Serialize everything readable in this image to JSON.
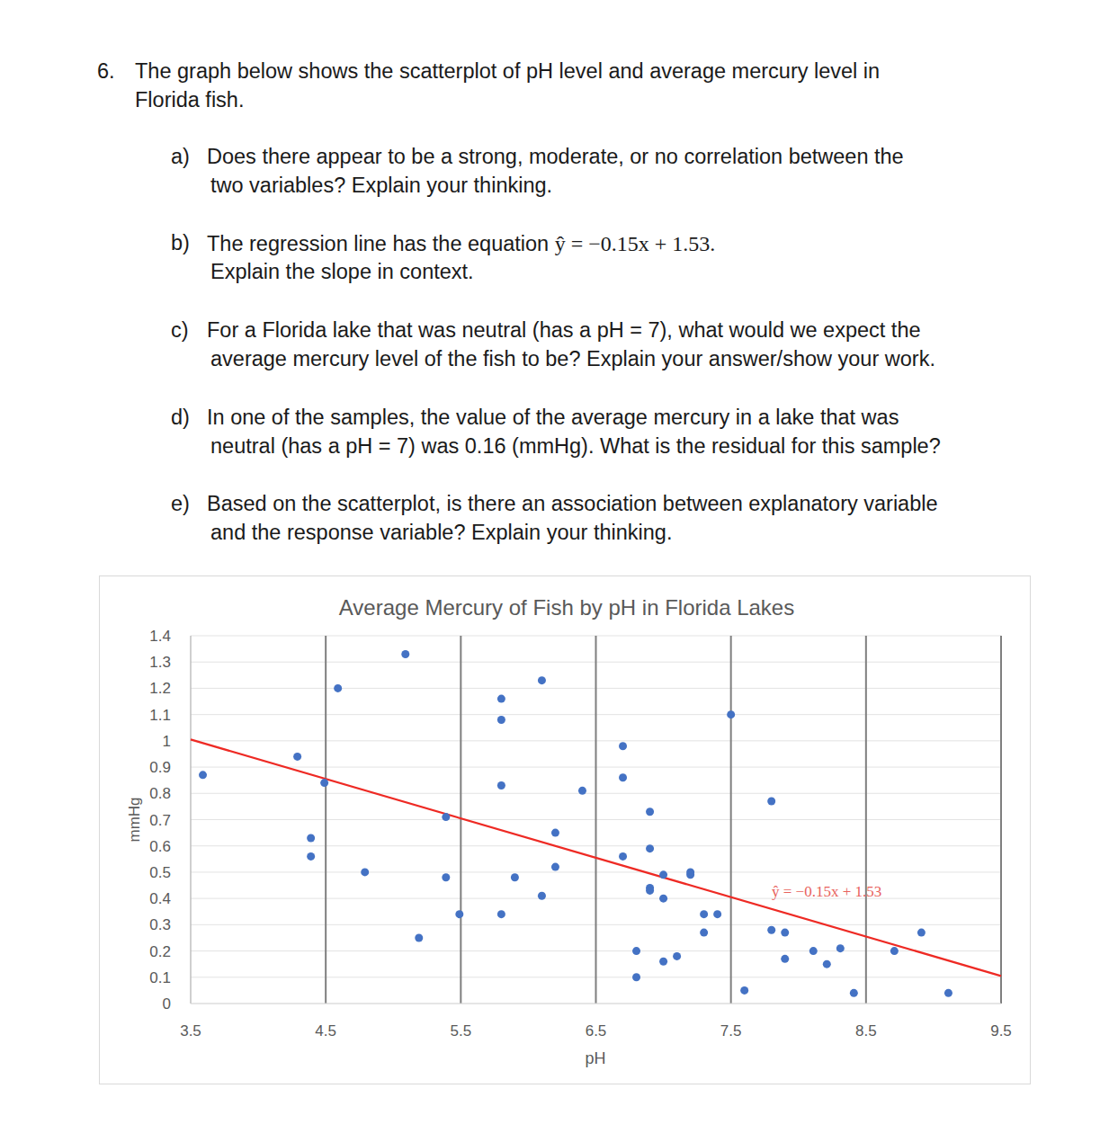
{
  "document": {
    "question": {
      "number": "6.",
      "lines": [
        "The graph below shows the scatterplot of pH level and average mercury level in",
        "Florida fish."
      ],
      "parts": [
        {
          "label": "a)",
          "lines": [
            "Does there appear to be a strong, moderate, or no correlation between the",
            "two variables? Explain your thinking."
          ]
        },
        {
          "label": "b)",
          "lines": [
            "The regression line has the equation ",
            "Explain the slope in context."
          ],
          "equation": "ŷ = −0.15x + 1.53."
        },
        {
          "label": "c)",
          "lines": [
            "For a Florida lake that was neutral (has a pH = 7), what would we expect the",
            "average mercury level of the fish to be? Explain your answer/show your work."
          ]
        },
        {
          "label": "d)",
          "lines": [
            "In one of the samples, the value of the average mercury in a lake that was",
            "neutral (has a pH = 7) was 0.16 (mmHg). What is the residual for this sample?"
          ]
        },
        {
          "label": "e)",
          "lines": [
            "Based on the scatterplot, is there an association between explanatory variable",
            "and the response variable? Explain your thinking."
          ]
        }
      ]
    }
  },
  "chart_data": {
    "type": "scatter",
    "title": "Average Mercury of Fish by pH in Florida Lakes",
    "x_label": "pH",
    "y_label": "mmHg",
    "xlim": [
      3.5,
      9.5
    ],
    "xticks": [
      3.5,
      4.5,
      5.5,
      6.5,
      7.5,
      8.5,
      9.5
    ],
    "ylim": [
      0,
      1.4
    ],
    "yticks": [
      0,
      0.1,
      0.2,
      0.3,
      0.4,
      0.5,
      0.6,
      0.7,
      0.8,
      0.9,
      1,
      1.1,
      1.2,
      1.3,
      1.4
    ],
    "grid": true,
    "color": "#4472c4",
    "marker": "circle",
    "x": [
      3.59,
      4.29,
      4.39,
      4.39,
      4.49,
      4.59,
      4.79,
      5.09,
      5.19,
      5.39,
      5.39,
      5.49,
      5.8,
      5.8,
      5.8,
      5.8,
      5.9,
      6.1,
      6.1,
      6.2,
      6.2,
      6.4,
      6.7,
      6.7,
      6.7,
      6.8,
      6.8,
      6.9,
      6.9,
      6.9,
      6.9,
      7.0,
      7.0,
      7.0,
      7.1,
      7.2,
      7.2,
      7.3,
      7.3,
      7.4,
      7.5,
      7.6,
      7.8,
      7.8,
      7.9,
      7.9,
      8.11,
      8.21,
      8.31,
      8.41,
      8.71,
      8.91,
      9.11
    ],
    "values": [
      0.87,
      0.94,
      0.63,
      0.56,
      0.84,
      1.2,
      0.5,
      1.33,
      0.25,
      0.71,
      0.48,
      0.34,
      1.16,
      1.08,
      0.83,
      0.34,
      0.48,
      1.23,
      0.41,
      0.65,
      0.52,
      0.81,
      0.98,
      0.86,
      0.56,
      0.2,
      0.1,
      0.73,
      0.59,
      0.44,
      0.43,
      0.49,
      0.4,
      0.16,
      0.18,
      0.5,
      0.49,
      0.34,
      0.27,
      0.34,
      1.1,
      0.05,
      0.77,
      0.28,
      0.27,
      0.17,
      0.2,
      0.15,
      0.21,
      0.04,
      0.2,
      0.27,
      0.04
    ],
    "regression": {
      "slope": -0.15,
      "intercept": 1.53,
      "label": "ŷ = −0.15x + 1.53",
      "color": "#ee2a24"
    }
  }
}
